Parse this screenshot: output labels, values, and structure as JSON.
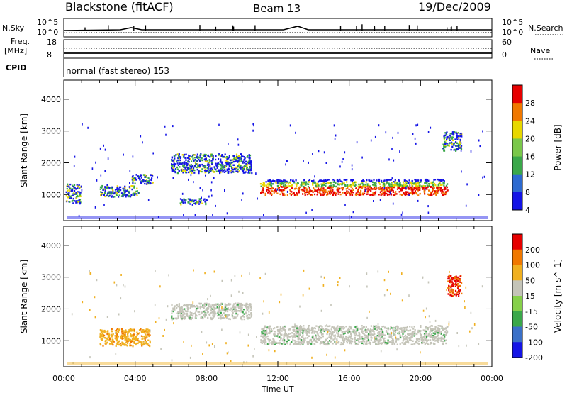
{
  "header": {
    "station": "Blackstone (fitACF)",
    "beam": "Beam 13",
    "date": "19/Dec/2009"
  },
  "top_panels": {
    "nsky_label": "N.Sky",
    "nsky_ticks": [
      "10^5",
      "10^0"
    ],
    "nsearch_label": "N.Search",
    "nsearch_ticks": [
      "10^5",
      "10^0"
    ],
    "freq_label": "Freq.",
    "freq_unit": "[MHz]",
    "freq_ticks": [
      "18",
      "8"
    ],
    "nave_label": "Nave",
    "nave_ticks": [
      "60",
      "0"
    ],
    "cpid_label": "CPID",
    "cpid_value": "normal (fast stereo) 153"
  },
  "x_axis": {
    "label": "Time UT",
    "ticks": [
      "00:00",
      "04:00",
      "08:00",
      "12:00",
      "16:00",
      "20:00",
      "00:00"
    ]
  },
  "colors": {
    "blue": "#1414e6",
    "green": "#3aa84a",
    "yellow": "#e8d800",
    "orange": "#f07800",
    "red": "#e60000",
    "grey": "#c4c4b8",
    "gold": "#f0b020"
  },
  "chart_data": [
    {
      "type": "heatmap",
      "ylabel": "Slant Range [km]",
      "ylim": [
        180,
        4600
      ],
      "xlim": [
        0,
        24
      ],
      "y_ticks": [
        "4000",
        "3000",
        "2000",
        "1000"
      ],
      "colorbar": {
        "label": "Power [dB]",
        "ticks": [
          "28",
          "24",
          "20",
          "16",
          "12",
          "8",
          "4"
        ]
      },
      "regions": [
        {
          "x": [
            0.1,
            0.9
          ],
          "y": [
            750,
            1350
          ],
          "level": "blue-green"
        },
        {
          "x": [
            2.0,
            4.2
          ],
          "y": [
            950,
            1300
          ],
          "level": "blue-green"
        },
        {
          "x": [
            3.8,
            5.0
          ],
          "y": [
            1350,
            1650
          ],
          "level": "blue-green"
        },
        {
          "x": [
            6.0,
            10.5
          ],
          "y": [
            1700,
            2300
          ],
          "level": "blue-green"
        },
        {
          "x": [
            6.5,
            8.0
          ],
          "y": [
            700,
            900
          ],
          "level": "blue-green"
        },
        {
          "x": [
            11.0,
            21.5
          ],
          "y": [
            1000,
            1500
          ],
          "level": "red-orange"
        },
        {
          "x": [
            21.2,
            22.3
          ],
          "y": [
            2400,
            3000
          ],
          "level": "blue-green"
        }
      ]
    },
    {
      "type": "heatmap",
      "ylabel": "Slant Range [km]",
      "ylim": [
        180,
        4600
      ],
      "xlim": [
        0,
        24
      ],
      "y_ticks": [
        "4000",
        "3000",
        "2000",
        "1000"
      ],
      "colorbar": {
        "label": "Velocity [m s^-1]",
        "ticks": [
          "200",
          "100",
          "50",
          "15",
          "-15",
          "-50",
          "-100",
          "-200"
        ]
      },
      "regions": [
        {
          "x": [
            2.0,
            4.8
          ],
          "y": [
            850,
            1400
          ],
          "level": "gold"
        },
        {
          "x": [
            6.0,
            10.5
          ],
          "y": [
            1700,
            2200
          ],
          "level": "grey"
        },
        {
          "x": [
            11.0,
            21.5
          ],
          "y": [
            900,
            1500
          ],
          "level": "grey"
        },
        {
          "x": [
            21.5,
            22.3
          ],
          "y": [
            2400,
            3100
          ],
          "level": "orange-red"
        }
      ]
    }
  ]
}
